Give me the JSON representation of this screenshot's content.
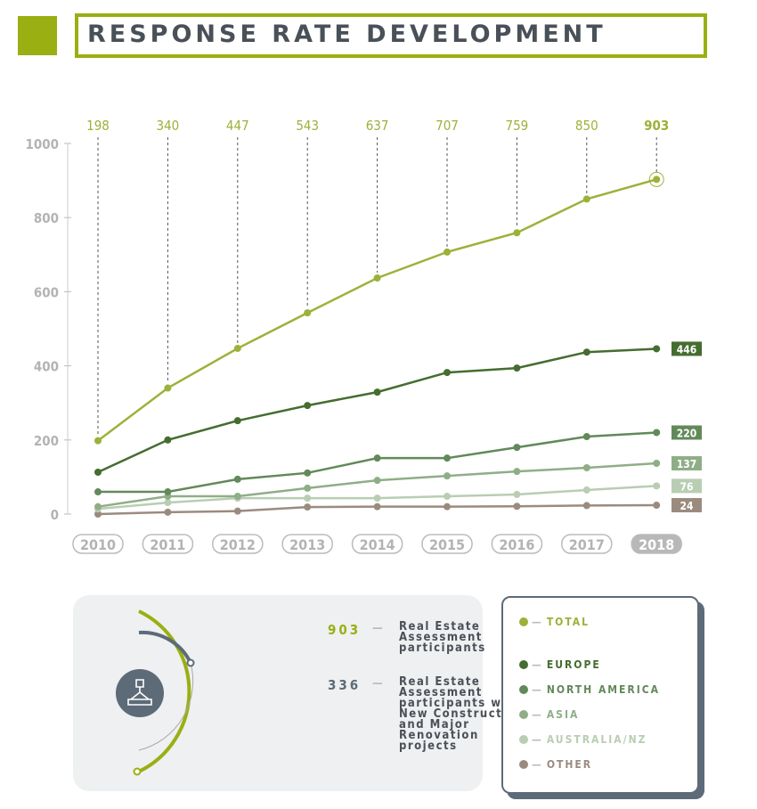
{
  "title": "RESPONSE RATE DEVELOPMENT",
  "chart_data": {
    "type": "line",
    "x": [
      "2010",
      "2011",
      "2012",
      "2013",
      "2014",
      "2015",
      "2016",
      "2017",
      "2018"
    ],
    "ylim": [
      0,
      1000
    ],
    "yticks": [
      "0",
      "200",
      "400",
      "600",
      "800",
      "1000"
    ],
    "top_labels": [
      "198",
      "340",
      "447",
      "543",
      "637",
      "707",
      "759",
      "850",
      "903"
    ],
    "series": [
      {
        "name": "TOTAL",
        "color": "#9bb23a",
        "values": [
          198,
          340,
          447,
          543,
          637,
          707,
          759,
          850,
          903
        ],
        "end_label": ""
      },
      {
        "name": "EUROPE",
        "color": "#456d30",
        "values": [
          113,
          200,
          252,
          293,
          329,
          382,
          394,
          437,
          446
        ],
        "end_label": "446"
      },
      {
        "name": "NORTH AMERICA",
        "color": "#62895a",
        "values": [
          60,
          60,
          94,
          111,
          151,
          151,
          180,
          209,
          220
        ],
        "end_label": "220"
      },
      {
        "name": "ASIA",
        "color": "#8fae87",
        "values": [
          20,
          48,
          48,
          70,
          91,
          103,
          115,
          125,
          137
        ],
        "end_label": "137"
      },
      {
        "name": "AUSTRALIA/NZ",
        "color": "#b9cdb3",
        "values": [
          14,
          31,
          43,
          43,
          43,
          48,
          53,
          65,
          76
        ],
        "end_label": "76"
      },
      {
        "name": "OTHER",
        "color": "#9b8b7f",
        "values": [
          0,
          5,
          8,
          19,
          20,
          20,
          21,
          23,
          24
        ],
        "end_label": "24"
      }
    ],
    "grid": false,
    "legend": "bottom-right"
  },
  "stats": [
    {
      "value": "903",
      "text": "Real Estate Assessment participants",
      "color": "#9aaf12"
    },
    {
      "value": "336",
      "text": "Real Estate Assessment participants with New Construction and Major Renovation projects",
      "color": "#5d6b78"
    }
  ]
}
